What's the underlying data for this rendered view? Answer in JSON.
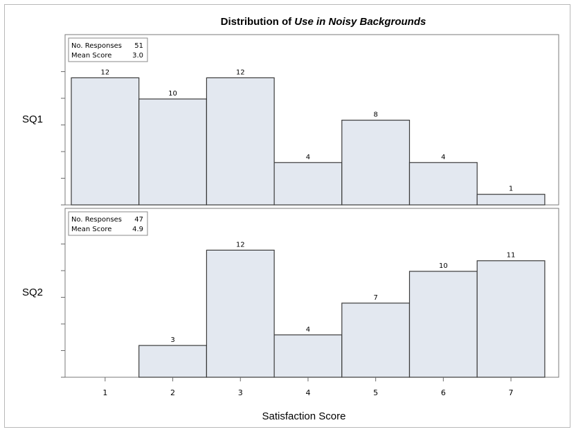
{
  "chart_data": {
    "type": "bar",
    "title_prefix": "Distribution of ",
    "title_emphasis": "Use in Noisy Backgrounds",
    "xlabel": "Satisfaction Score",
    "categories": [
      "1",
      "2",
      "3",
      "4",
      "5",
      "6",
      "7"
    ],
    "ylim": [
      0,
      13
    ],
    "panels": [
      {
        "row_label": "SQ1",
        "values": [
          12,
          10,
          12,
          4,
          8,
          4,
          1
        ],
        "stats_label_1": "No. Responses",
        "stats_value_1": "51",
        "stats_label_2": "Mean Score",
        "stats_value_2": "3.0"
      },
      {
        "row_label": "SQ2",
        "values": [
          0,
          3,
          12,
          4,
          7,
          10,
          11
        ],
        "stats_label_1": "No. Responses",
        "stats_value_1": "47",
        "stats_label_2": "Mean Score",
        "stats_value_2": "4.9"
      }
    ],
    "bar_fill": "#e3e8f0",
    "bar_stroke": "#3a3a3a",
    "grid": false,
    "legend": "none"
  }
}
